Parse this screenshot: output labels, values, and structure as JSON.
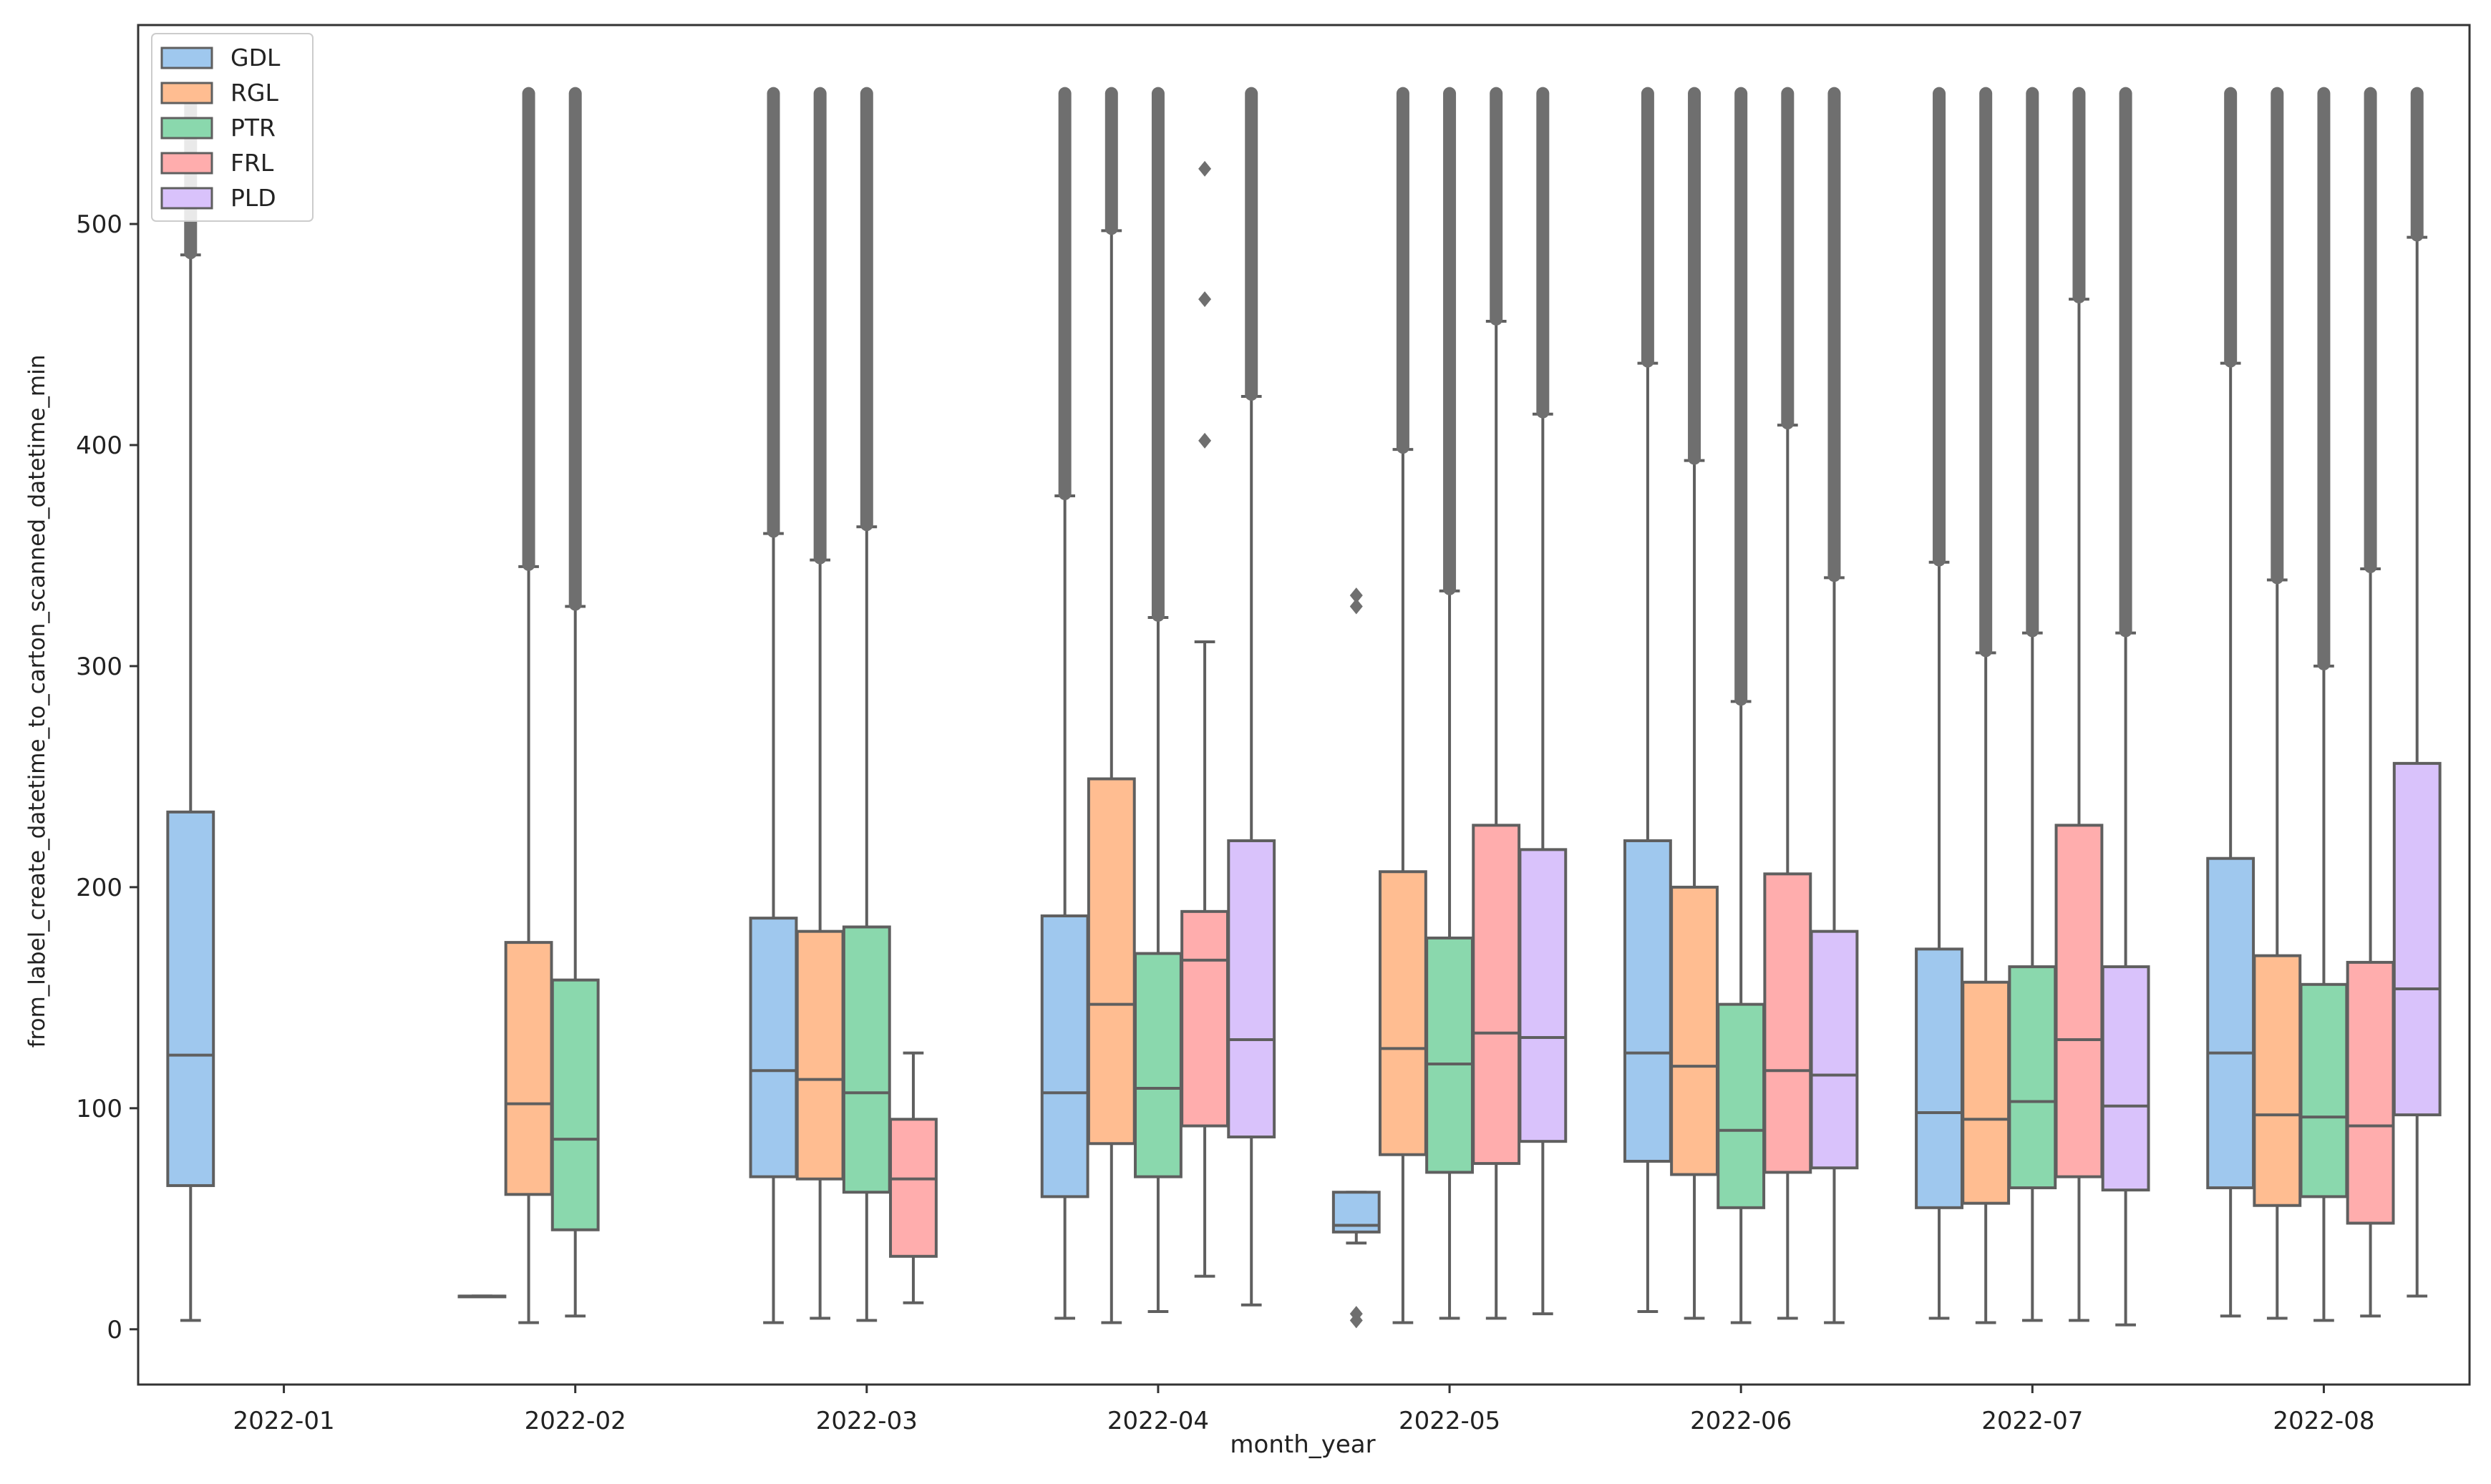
{
  "chart_data": {
    "type": "boxplot",
    "title": "",
    "xlabel": "month_year",
    "ylabel": "from_label_create_datetime_to_carton_scanned_datetime_min",
    "ylim": [
      -25,
      590
    ],
    "yticks": [
      0,
      100,
      200,
      300,
      400,
      500
    ],
    "categories": [
      "2022-01",
      "2022-02",
      "2022-03",
      "2022-04",
      "2022-05",
      "2022-06",
      "2022-07",
      "2022-08"
    ],
    "legend_position": "top-left",
    "series": [
      {
        "name": "GDL",
        "color": "#9fc8ee",
        "boxes": [
          {
            "category": "2022-01",
            "q1": 65,
            "median": 124,
            "q3": 234,
            "whislo": 4,
            "whishi": 486,
            "fliers_range": [
              486,
              560
            ]
          },
          {
            "category": "2022-02",
            "q1": 15,
            "median": 15,
            "q3": 15,
            "whislo": 15,
            "whishi": 15,
            "fliers_range": null
          },
          {
            "category": "2022-03",
            "q1": 69,
            "median": 117,
            "q3": 186,
            "whislo": 3,
            "whishi": 360,
            "fliers_range": [
              360,
              560
            ]
          },
          {
            "category": "2022-04",
            "q1": 60,
            "median": 107,
            "q3": 187,
            "whislo": 5,
            "whishi": 377,
            "fliers_range": [
              377,
              560
            ]
          },
          {
            "category": "2022-05",
            "q1": 44,
            "median": 47,
            "q3": 62,
            "whislo": 39,
            "whishi": 62,
            "fliers": [
              4,
              7,
              327,
              332
            ]
          },
          {
            "category": "2022-06",
            "q1": 76,
            "median": 125,
            "q3": 221,
            "whislo": 8,
            "whishi": 437,
            "fliers_range": [
              437,
              560
            ]
          },
          {
            "category": "2022-07",
            "q1": 55,
            "median": 98,
            "q3": 172,
            "whislo": 5,
            "whishi": 347,
            "fliers_range": [
              347,
              560
            ]
          },
          {
            "category": "2022-08",
            "q1": 64,
            "median": 125,
            "q3": 213,
            "whislo": 6,
            "whishi": 437,
            "fliers_range": [
              437,
              560
            ]
          }
        ]
      },
      {
        "name": "RGL",
        "color": "#ffbd91",
        "boxes": [
          {
            "category": "2022-02",
            "q1": 61,
            "median": 102,
            "q3": 175,
            "whislo": 3,
            "whishi": 345,
            "fliers_range": [
              345,
              560
            ]
          },
          {
            "category": "2022-03",
            "q1": 68,
            "median": 113,
            "q3": 180,
            "whislo": 5,
            "whishi": 348,
            "fliers_range": [
              348,
              560
            ]
          },
          {
            "category": "2022-04",
            "q1": 84,
            "median": 147,
            "q3": 249,
            "whislo": 3,
            "whishi": 497,
            "fliers_range": [
              497,
              560
            ]
          },
          {
            "category": "2022-05",
            "q1": 79,
            "median": 127,
            "q3": 207,
            "whislo": 3,
            "whishi": 398,
            "fliers_range": [
              398,
              560
            ]
          },
          {
            "category": "2022-06",
            "q1": 70,
            "median": 119,
            "q3": 200,
            "whislo": 5,
            "whishi": 393,
            "fliers_range": [
              393,
              560
            ]
          },
          {
            "category": "2022-07",
            "q1": 57,
            "median": 95,
            "q3": 157,
            "whislo": 3,
            "whishi": 306,
            "fliers_range": [
              306,
              560
            ]
          },
          {
            "category": "2022-08",
            "q1": 56,
            "median": 97,
            "q3": 169,
            "whislo": 5,
            "whishi": 339,
            "fliers_range": [
              339,
              560
            ]
          }
        ]
      },
      {
        "name": "PTR",
        "color": "#8ad8ad",
        "boxes": [
          {
            "category": "2022-02",
            "q1": 45,
            "median": 86,
            "q3": 158,
            "whislo": 6,
            "whishi": 327,
            "fliers_range": [
              327,
              560
            ]
          },
          {
            "category": "2022-03",
            "q1": 62,
            "median": 107,
            "q3": 182,
            "whislo": 4,
            "whishi": 363,
            "fliers_range": [
              363,
              560
            ]
          },
          {
            "category": "2022-04",
            "q1": 69,
            "median": 109,
            "q3": 170,
            "whislo": 8,
            "whishi": 322,
            "fliers_range": [
              322,
              560
            ]
          },
          {
            "category": "2022-05",
            "q1": 71,
            "median": 120,
            "q3": 177,
            "whislo": 5,
            "whishi": 334,
            "fliers_range": [
              334,
              560
            ]
          },
          {
            "category": "2022-06",
            "q1": 55,
            "median": 90,
            "q3": 147,
            "whislo": 3,
            "whishi": 284,
            "fliers_range": [
              284,
              560
            ]
          },
          {
            "category": "2022-07",
            "q1": 64,
            "median": 103,
            "q3": 164,
            "whislo": 4,
            "whishi": 315,
            "fliers_range": [
              315,
              560
            ]
          },
          {
            "category": "2022-08",
            "q1": 60,
            "median": 96,
            "q3": 156,
            "whislo": 4,
            "whishi": 300,
            "fliers_range": [
              300,
              560
            ]
          }
        ]
      },
      {
        "name": "FRL",
        "color": "#ffadad",
        "boxes": [
          {
            "category": "2022-03",
            "q1": 33,
            "median": 68,
            "q3": 95,
            "whislo": 12,
            "whishi": 125,
            "fliers_range": null
          },
          {
            "category": "2022-04",
            "q1": 92,
            "median": 167,
            "q3": 189,
            "whislo": 24,
            "whishi": 311,
            "fliers": [
              402,
              466,
              525
            ]
          },
          {
            "category": "2022-05",
            "q1": 75,
            "median": 134,
            "q3": 228,
            "whislo": 5,
            "whishi": 456,
            "fliers_range": [
              456,
              560
            ]
          },
          {
            "category": "2022-06",
            "q1": 71,
            "median": 117,
            "q3": 206,
            "whislo": 5,
            "whishi": 409,
            "fliers_range": [
              409,
              560
            ]
          },
          {
            "category": "2022-07",
            "q1": 69,
            "median": 131,
            "q3": 228,
            "whislo": 4,
            "whishi": 466,
            "fliers_range": [
              466,
              560
            ]
          },
          {
            "category": "2022-08",
            "q1": 48,
            "median": 92,
            "q3": 166,
            "whislo": 6,
            "whishi": 344,
            "fliers_range": [
              344,
              560
            ]
          }
        ]
      },
      {
        "name": "PLD",
        "color": "#d9c2fb",
        "boxes": [
          {
            "category": "2022-04",
            "q1": 87,
            "median": 131,
            "q3": 221,
            "whislo": 11,
            "whishi": 422,
            "fliers_range": [
              422,
              560
            ]
          },
          {
            "category": "2022-05",
            "q1": 85,
            "median": 132,
            "q3": 217,
            "whislo": 7,
            "whishi": 414,
            "fliers_range": [
              414,
              560
            ]
          },
          {
            "category": "2022-06",
            "q1": 73,
            "median": 115,
            "q3": 180,
            "whislo": 3,
            "whishi": 340,
            "fliers_range": [
              340,
              560
            ]
          },
          {
            "category": "2022-07",
            "q1": 63,
            "median": 101,
            "q3": 164,
            "whislo": 2,
            "whishi": 315,
            "fliers_range": [
              315,
              560
            ]
          },
          {
            "category": "2022-08",
            "q1": 97,
            "median": 154,
            "q3": 256,
            "whislo": 15,
            "whishi": 494,
            "fliers_range": [
              494,
              560
            ]
          }
        ]
      }
    ]
  }
}
